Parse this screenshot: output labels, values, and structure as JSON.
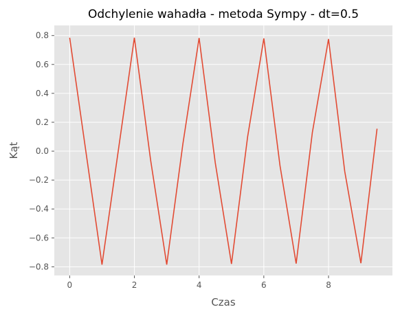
{
  "chart_data": {
    "type": "line",
    "title": "Odchylenie wahadła - metoda Sympy - dt=0.5",
    "xlabel": "Czas",
    "ylabel": "Kąt",
    "xlim": [
      -0.475,
      9.975
    ],
    "ylim": [
      -0.86,
      0.87
    ],
    "xticks": [
      0,
      2,
      4,
      6,
      8
    ],
    "xtick_labels": [
      "0",
      "2",
      "4",
      "6",
      "8"
    ],
    "yticks": [
      -0.8,
      -0.6,
      -0.4,
      -0.2,
      0.0,
      0.2,
      0.4,
      0.6,
      0.8
    ],
    "ytick_labels": [
      "−0.8",
      "−0.6",
      "−0.4",
      "−0.2",
      "0.0",
      "0.2",
      "0.4",
      "0.6",
      "0.8"
    ],
    "grid": true,
    "style": "ggplot",
    "colors": {
      "plot_background": "#e5e5e5",
      "grid": "#ffffff",
      "series": "#e24a33",
      "tick": "#555555"
    },
    "series": [
      {
        "x": [
          0,
          0.5,
          1,
          1.5,
          2,
          2.5,
          3,
          3.5,
          4,
          4.5,
          5,
          5.5,
          6,
          6.5,
          7,
          7.5,
          8,
          8.5,
          9,
          9.5
        ],
        "y": [
          0.785,
          0.0,
          -0.785,
          0.0,
          0.785,
          -0.06,
          -0.785,
          0.05,
          0.783,
          -0.08,
          -0.78,
          0.1,
          0.78,
          -0.1,
          -0.778,
          0.13,
          0.776,
          -0.14,
          -0.775,
          0.155
        ]
      }
    ]
  }
}
